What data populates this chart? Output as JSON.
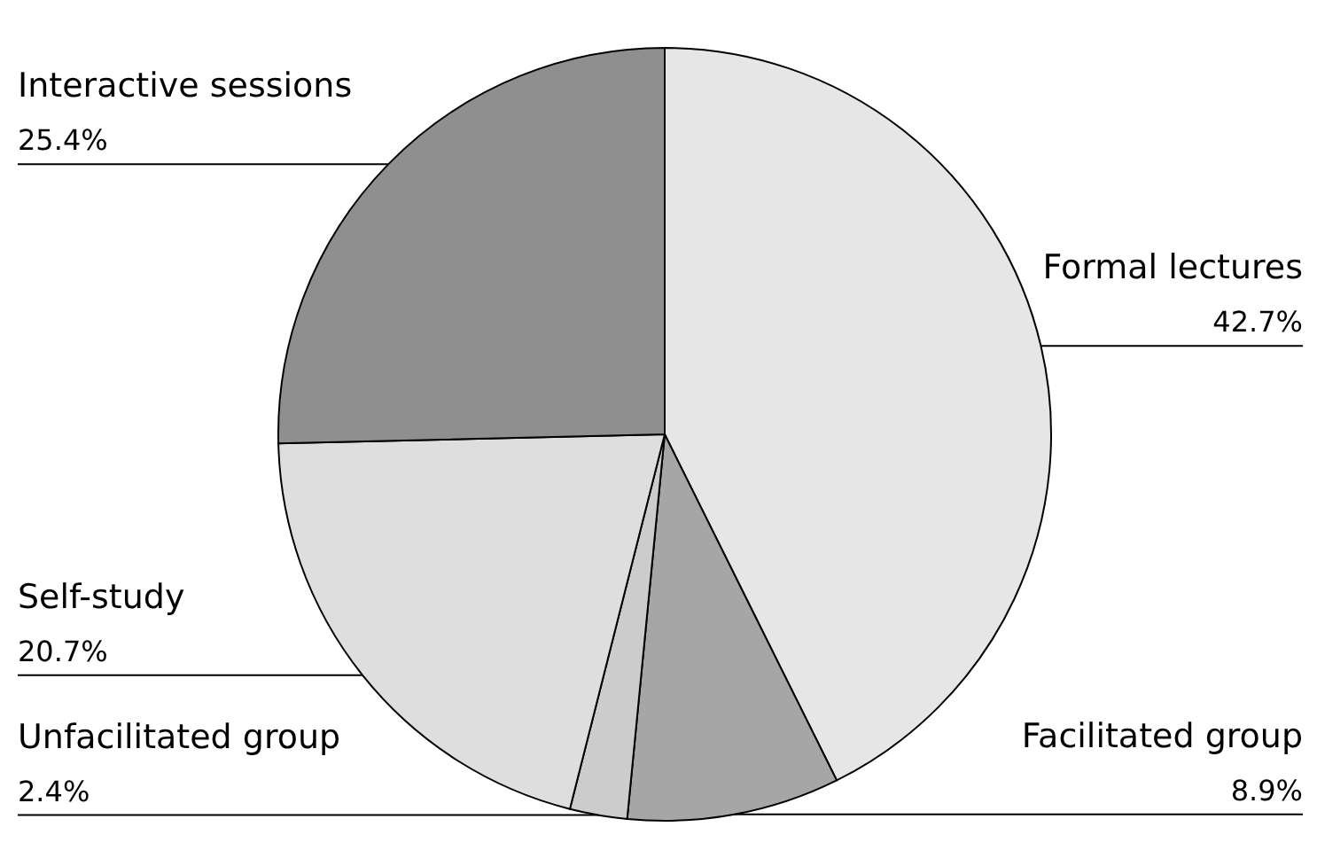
{
  "chart_data": {
    "type": "pie",
    "categories": [
      "Formal lectures",
      "Facilitated group",
      "Unfacilitated group",
      "Self-study",
      "Interactive sessions"
    ],
    "values": [
      42.7,
      8.9,
      2.4,
      20.7,
      25.4
    ],
    "colors": [
      "#e6e6e6",
      "#a6a6a6",
      "#cccccc",
      "#dedede",
      "#8f8f8f"
    ],
    "value_labels": [
      "42.7%",
      "8.9%",
      "2.4%",
      "20.7%",
      "25.4%"
    ]
  }
}
